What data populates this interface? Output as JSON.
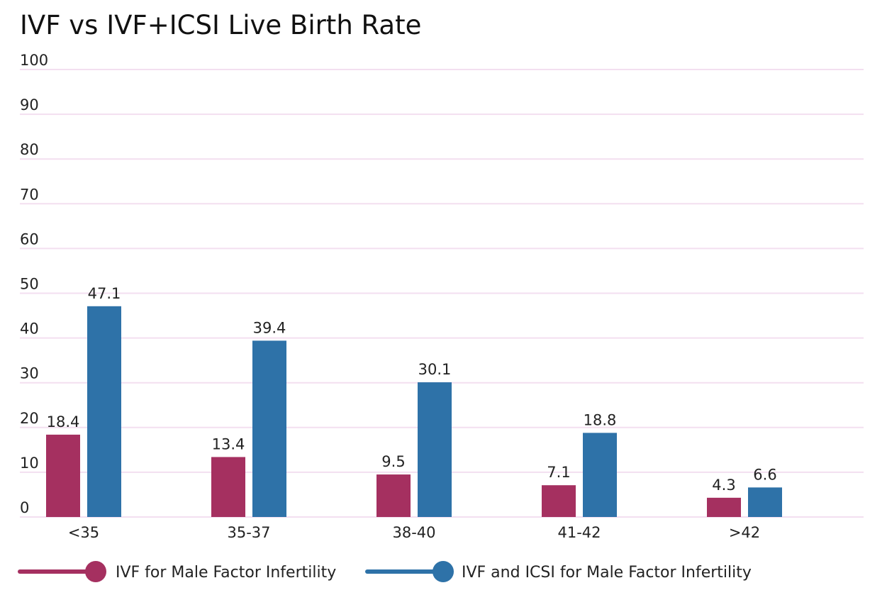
{
  "chart_data": {
    "type": "bar",
    "title": "IVF vs IVF+ICSI Live Birth Rate",
    "xlabel": "",
    "ylabel": "",
    "ylim": [
      0,
      100
    ],
    "yticks": [
      0,
      10,
      20,
      30,
      40,
      50,
      60,
      70,
      80,
      90,
      100
    ],
    "grid": true,
    "legend_position": "bottom-left",
    "categories": [
      "<35",
      "35-37",
      "38-40",
      "41-42",
      ">42"
    ],
    "series": [
      {
        "name": "IVF for Male Factor Infertility",
        "color": "#a53060",
        "values": [
          18.4,
          13.4,
          9.5,
          7.1,
          4.3
        ],
        "labels": [
          "18.4",
          "13.4",
          "9.5",
          "7.1",
          "4.3"
        ]
      },
      {
        "name": "IVF and ICSI for Male Factor Infertility",
        "color": "#2e72a8",
        "values": [
          47.1,
          39.4,
          30.1,
          18.8,
          6.6
        ],
        "labels": [
          "47.1",
          "39.4",
          "30.1",
          "18.8",
          "6.6"
        ]
      }
    ]
  },
  "colors": {
    "gridline": "#f3dff0",
    "text": "#222222"
  }
}
